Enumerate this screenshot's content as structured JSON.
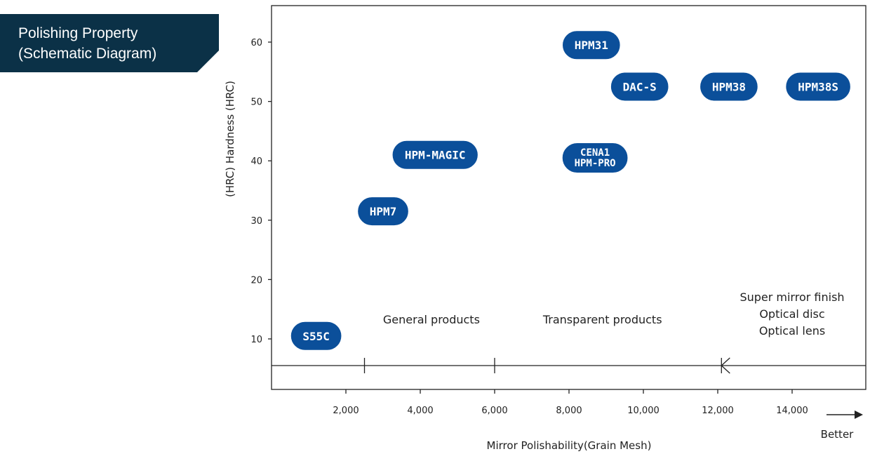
{
  "colors": {
    "title_bg": "#0b3147",
    "pill_fill": "#0b4f9a",
    "axis": "#222222"
  },
  "title": {
    "line1": "Polishing Property",
    "line2": "(Schematic Diagram)"
  },
  "chart_data": {
    "type": "scatter",
    "xlabel": "Mirror Polishability(Grain Mesh)",
    "ylabel": "(HRC) Hardness (HRC)",
    "x_direction_label": "Better",
    "xlim": [
      0,
      16000
    ],
    "ylim": [
      0,
      65
    ],
    "x_ticks": [
      2000,
      4000,
      6000,
      8000,
      10000,
      12000,
      14000
    ],
    "x_tick_labels": [
      "2,000",
      "4,000",
      "6,000",
      "8,000",
      "10,000",
      "12,000",
      "14,000"
    ],
    "y_ticks": [
      10,
      20,
      30,
      40,
      50,
      60
    ],
    "y_tick_labels": [
      "10",
      "20",
      "30",
      "40",
      "50",
      "60"
    ],
    "grid": false,
    "points": [
      {
        "labels": [
          "S55C"
        ],
        "x": 1200,
        "y": 10.5
      },
      {
        "labels": [
          "HPM7"
        ],
        "x": 3000,
        "y": 31.5
      },
      {
        "labels": [
          "HPM-MAGIC"
        ],
        "x": 4400,
        "y": 41
      },
      {
        "labels": [
          "CENA1",
          "HPM-PRO"
        ],
        "x": 8700,
        "y": 40.5
      },
      {
        "labels": [
          "HPM31"
        ],
        "x": 8600,
        "y": 59.5
      },
      {
        "labels": [
          "DAC-S"
        ],
        "x": 9900,
        "y": 52.5
      },
      {
        "labels": [
          "HPM38"
        ],
        "x": 12300,
        "y": 52.5
      },
      {
        "labels": [
          "HPM38S"
        ],
        "x": 14700,
        "y": 52.5
      }
    ],
    "categories": [
      {
        "lines": [
          "General products"
        ],
        "x": 4300
      },
      {
        "lines": [
          "Transparent products"
        ],
        "x": 8900
      },
      {
        "lines": [
          "Super mirror finish",
          "Optical disc",
          "Optical lens"
        ],
        "x": 14000
      }
    ],
    "category_boundaries": [
      2500,
      6000,
      12100
    ]
  }
}
